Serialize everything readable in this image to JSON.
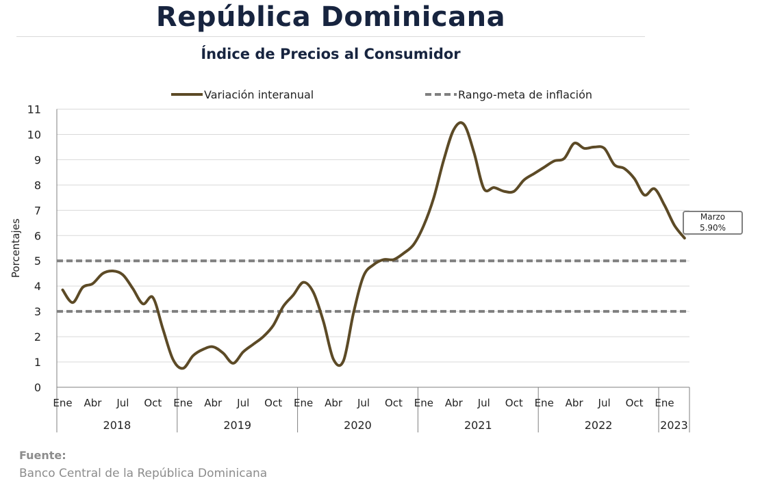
{
  "header": {
    "title": "República Dominicana",
    "subtitle": "Índice de Precios al Consumidor"
  },
  "source": {
    "heading": "Fuente:",
    "text": "Banco Central de la República Dominicana"
  },
  "colors": {
    "series": "#5c4a26",
    "target_band": "#7f7f7f",
    "title": "#17243f",
    "grid": "#d9d9d9"
  },
  "chart_data": {
    "type": "line",
    "ylabel": "Porcentajes",
    "ylim": [
      0,
      11
    ],
    "yticks": [
      0,
      1,
      2,
      3,
      4,
      5,
      6,
      7,
      8,
      9,
      10,
      11
    ],
    "grid": "horizontal",
    "legend_position": "top",
    "month_tick_labels": [
      "Ene",
      "Abr",
      "Jul",
      "Oct"
    ],
    "year_labels": [
      "2018",
      "2019",
      "2020",
      "2021",
      "2022",
      "2023"
    ],
    "series": [
      {
        "name": "Variación interanual",
        "x": [
          "2018-01",
          "2018-02",
          "2018-03",
          "2018-04",
          "2018-05",
          "2018-06",
          "2018-07",
          "2018-08",
          "2018-09",
          "2018-10",
          "2018-11",
          "2018-12",
          "2019-01",
          "2019-02",
          "2019-03",
          "2019-04",
          "2019-05",
          "2019-06",
          "2019-07",
          "2019-08",
          "2019-09",
          "2019-10",
          "2019-11",
          "2019-12",
          "2020-01",
          "2020-02",
          "2020-03",
          "2020-04",
          "2020-05",
          "2020-06",
          "2020-07",
          "2020-08",
          "2020-09",
          "2020-10",
          "2020-11",
          "2020-12",
          "2021-01",
          "2021-02",
          "2021-03",
          "2021-04",
          "2021-05",
          "2021-06",
          "2021-07",
          "2021-08",
          "2021-09",
          "2021-10",
          "2021-11",
          "2021-12",
          "2022-01",
          "2022-02",
          "2022-03",
          "2022-04",
          "2022-05",
          "2022-06",
          "2022-07",
          "2022-08",
          "2022-09",
          "2022-10",
          "2022-11",
          "2022-12",
          "2023-01",
          "2023-02",
          "2023-03"
        ],
        "values": [
          3.85,
          3.35,
          3.95,
          4.1,
          4.5,
          4.6,
          4.45,
          3.9,
          3.3,
          3.55,
          2.3,
          1.1,
          0.75,
          1.25,
          1.5,
          1.6,
          1.35,
          0.95,
          1.4,
          1.7,
          2.0,
          2.45,
          3.2,
          3.65,
          4.15,
          3.75,
          2.6,
          1.1,
          1.05,
          2.95,
          4.4,
          4.85,
          5.05,
          5.05,
          5.3,
          5.65,
          6.4,
          7.5,
          9.0,
          10.2,
          10.4,
          9.3,
          7.85,
          7.9,
          7.75,
          7.75,
          8.2,
          8.45,
          8.7,
          8.95,
          9.05,
          9.65,
          9.45,
          9.5,
          9.45,
          8.8,
          8.65,
          8.25,
          7.6,
          7.85,
          7.2,
          6.4,
          5.9
        ]
      }
    ],
    "target_range": {
      "name": "Rango-meta de inflación",
      "lower": 3,
      "upper": 5
    },
    "annotation": {
      "label": "Marzo",
      "value": "5.90%"
    }
  }
}
